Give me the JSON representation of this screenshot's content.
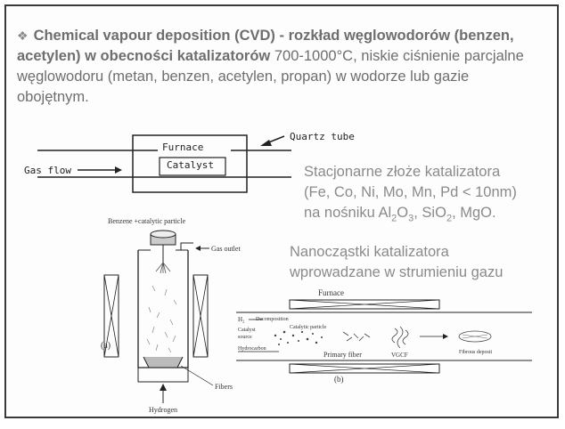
{
  "intro": {
    "bullet_icon": "diamond-bullet-icon",
    "bold_text": "Chemical vapour deposition (CVD) - rozkład węglowodorów (benzen, acetylen) w obecności katalizatorów",
    "normal_text": " 700-1000°C, niskie ciśnienie parcjalne węglowodoru (metan, benzen, acetylen, propan) w wodorze lub gazie obojętnym."
  },
  "diagram1": {
    "furnace_label": "Furnace",
    "catalyst_label": "Catalyst",
    "gas_flow_label": "Gas flow",
    "quartz_tube_label": "Quartz tube"
  },
  "side1": {
    "line1": "Stacjonarne złoże katalizatora",
    "line2": "(Fe, Co, Ni, Mo, Mn, Pd < 10nm)",
    "line3_prefix": "na nośniku Al",
    "al_sub1": "2",
    "o_text": "O",
    "al_sub2": "3",
    "sio": ", SiO",
    "sio_sub": "2",
    "mgo": ", MgO."
  },
  "side2": {
    "line1": "Nanocząstki katalizatora",
    "line2": "wprowadzane w strumieniu gazu"
  },
  "diagram_a": {
    "top_label": "Benzene +catalytic particle",
    "gas_outlet_label": "Gas outlet",
    "panel_label": "(a)",
    "fibers_label": "Fibers",
    "hydrogen_label": "Hydrogen"
  },
  "diagram_b": {
    "furnace_label": "Furnace",
    "h2_label": "H₂",
    "decomposition_label": "Decomposition",
    "catalyst_label": "Catalyst",
    "source_label": "source",
    "catalytic_particle_label": "Catalytic particle",
    "hydrocarbon_label": "Hydrocarbon",
    "primary_fiber_label": "Primary fiber",
    "vgcf_label": "VGCF",
    "fibrous_deposit_label": "Fibrous deposit",
    "panel_label": "(b)"
  }
}
